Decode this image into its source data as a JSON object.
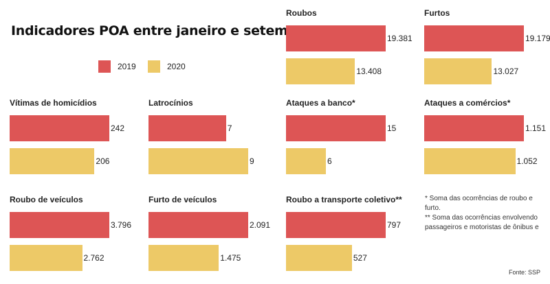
{
  "title": "Indicadores POA entre janeiro e setembro",
  "legend": [
    {
      "label": "2019",
      "color": "#dd5555"
    },
    {
      "label": "2020",
      "color": "#edc967"
    }
  ],
  "chart_data": {
    "type": "bar",
    "series_names": [
      "2019",
      "2020"
    ],
    "colors": [
      "#dd5555",
      "#edc967"
    ],
    "panels": [
      {
        "title": "Roubos",
        "values": [
          19381,
          13408
        ],
        "labels": [
          "19.381",
          "13.408"
        ]
      },
      {
        "title": "Furtos",
        "values": [
          19179,
          13027
        ],
        "labels": [
          "19.179",
          "13.027"
        ]
      },
      {
        "title": "Vítimas de homicídios",
        "values": [
          242,
          206
        ],
        "labels": [
          "242",
          "206"
        ]
      },
      {
        "title": "Latrocínios",
        "values": [
          7,
          9
        ],
        "labels": [
          "7",
          "9"
        ]
      },
      {
        "title": "Ataques a banco*",
        "values": [
          15,
          6
        ],
        "labels": [
          "15",
          "6"
        ]
      },
      {
        "title": "Ataques a comércios*",
        "values": [
          1151,
          1052
        ],
        "labels": [
          "1.151",
          "1.052"
        ]
      },
      {
        "title": "Roubo de veículos",
        "values": [
          3796,
          2762
        ],
        "labels": [
          "3.796",
          "2.762"
        ]
      },
      {
        "title": "Furto de veículos",
        "values": [
          2091,
          1475
        ],
        "labels": [
          "2.091",
          "1.475"
        ]
      },
      {
        "title": "Roubo a transporte coletivo**",
        "values": [
          797,
          527
        ],
        "labels": [
          "797",
          "527"
        ]
      }
    ]
  },
  "notes": [
    "* Soma das ocorrências de roubo e furto.",
    "** Soma das ocorrências envolvendo passageiros e motoristas de ônibus e"
  ],
  "source": "Fonte: SSP"
}
